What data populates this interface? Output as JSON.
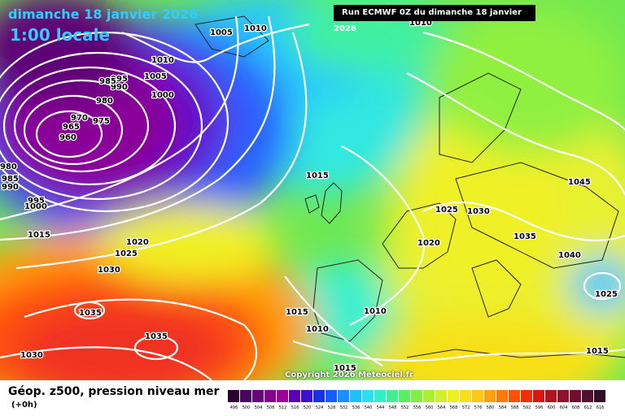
{
  "header": {
    "date": "dimanche 18 janvier 2026",
    "time": "1:00 locale",
    "run": "Run ECMWF 0Z du dimanche 18 janvier 2026"
  },
  "copyright": "Copyright 2026 Meteociel.fr",
  "legend": {
    "title": "Géop. z500, pression niveau mer",
    "subtitle": "(+0h)",
    "scale": [
      "496",
      "500",
      "504",
      "508",
      "512",
      "516",
      "520",
      "524",
      "528",
      "532",
      "536",
      "540",
      "544",
      "548",
      "552",
      "556",
      "560",
      "564",
      "568",
      "572",
      "576",
      "580",
      "584",
      "588",
      "592",
      "596",
      "600",
      "604",
      "608",
      "612",
      "616"
    ],
    "colors": [
      "#2a0030",
      "#4a0060",
      "#6a007a",
      "#860090",
      "#9a0098",
      "#5a00b4",
      "#3c10d0",
      "#1830e8",
      "#1460ff",
      "#1890ff",
      "#20c0ff",
      "#28e0f0",
      "#30f0c8",
      "#40f090",
      "#58f060",
      "#80f040",
      "#a8f030",
      "#d0f028",
      "#f0f020",
      "#f8e018",
      "#ffc814",
      "#ffa010",
      "#ff780c",
      "#ff5008",
      "#f03004",
      "#d81810",
      "#b01420",
      "#901030",
      "#701030",
      "#501030",
      "#301028"
    ],
    "colors_note": "purple low-height to red/dark high-height"
  },
  "isobars": [
    {
      "label": "1010",
      "value": 1010
    },
    {
      "label": "1005",
      "value": 1005
    },
    {
      "label": "1010",
      "value": 1010
    },
    {
      "label": "1005",
      "value": 1005
    },
    {
      "label": "1000",
      "value": 1000
    },
    {
      "label": "995",
      "value": 995
    },
    {
      "label": "990",
      "value": 990
    },
    {
      "label": "985",
      "value": 985
    },
    {
      "label": "980",
      "value": 980
    },
    {
      "label": "975",
      "value": 975
    },
    {
      "label": "970",
      "value": 970
    },
    {
      "label": "965",
      "value": 965
    },
    {
      "label": "960",
      "value": 960
    },
    {
      "label": "980",
      "value": 980
    },
    {
      "label": "985",
      "value": 985
    },
    {
      "label": "990",
      "value": 990
    },
    {
      "label": "995",
      "value": 995
    },
    {
      "label": "1000",
      "value": 1000
    },
    {
      "label": "1015",
      "value": 1015
    },
    {
      "label": "1020",
      "value": 1020
    },
    {
      "label": "1025",
      "value": 1025
    },
    {
      "label": "1030",
      "value": 1030
    },
    {
      "label": "1035",
      "value": 1035
    },
    {
      "label": "1035",
      "value": 1035
    },
    {
      "label": "1030",
      "value": 1030
    },
    {
      "label": "1015",
      "value": 1015
    },
    {
      "label": "1015",
      "value": 1015
    },
    {
      "label": "1010",
      "value": 1010
    },
    {
      "label": "1010",
      "value": 1010
    },
    {
      "label": "1020",
      "value": 1020
    },
    {
      "label": "1025",
      "value": 1025
    },
    {
      "label": "1030",
      "value": 1030
    },
    {
      "label": "1035",
      "value": 1035
    },
    {
      "label": "1045",
      "value": 1045
    },
    {
      "label": "1040",
      "value": 1040
    },
    {
      "label": "1025",
      "value": 1025
    },
    {
      "label": "1015",
      "value": 1015
    },
    {
      "label": "1015",
      "value": 1015
    },
    {
      "label": "1010",
      "value": 1010
    }
  ]
}
